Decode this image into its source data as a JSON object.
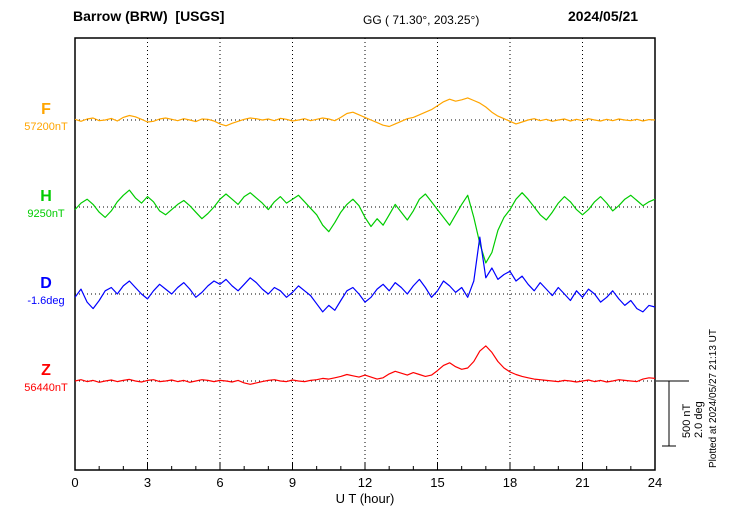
{
  "header": {
    "station": "Barrow (BRW)  [USGS]",
    "coords": "GG ( 71.30°, 203.25°)",
    "date": "2024/05/21"
  },
  "axis": {
    "x_label": "U T (hour)",
    "x_ticks": [
      0,
      3,
      6,
      9,
      12,
      15,
      18,
      21,
      24
    ]
  },
  "scale_bar": {
    "label_nT": "500 nT",
    "label_deg": "2.0 deg"
  },
  "plotted_note": "Plotted at 2024/05/27 21:13 UT",
  "chart_data": {
    "type": "line",
    "title": "Barrow (BRW) [USGS] magnetogram — 2024/05/21",
    "xlabel": "U T (hour)",
    "x_range": [
      0,
      24
    ],
    "x_step_hours": 0.25,
    "x_ticks": [
      0,
      3,
      6,
      9,
      12,
      15,
      18,
      21,
      24
    ],
    "grid": "dotted vertical every 3 h, dotted baseline per trace",
    "legend_position": "left margin, one label per trace",
    "scale_reference": {
      "nT_per_bar": 500,
      "deg_per_bar": 2.0
    },
    "series": [
      {
        "name": "F",
        "baseline_label": "57200nT",
        "unit": "nT",
        "color": "#FFA500",
        "values_offset_from_baseline": [
          5,
          -10,
          8,
          15,
          -5,
          0,
          12,
          -8,
          20,
          35,
          25,
          5,
          -15,
          -10,
          8,
          15,
          5,
          -5,
          10,
          0,
          -12,
          8,
          5,
          -8,
          -30,
          -45,
          -25,
          -10,
          5,
          15,
          10,
          0,
          8,
          -5,
          12,
          5,
          -8,
          0,
          10,
          -5,
          5,
          15,
          8,
          -5,
          20,
          50,
          60,
          40,
          20,
          0,
          -20,
          -40,
          -50,
          -30,
          -10,
          10,
          20,
          40,
          60,
          80,
          110,
          140,
          160,
          145,
          155,
          170,
          150,
          130,
          100,
          60,
          30,
          10,
          -10,
          -30,
          -15,
          0,
          10,
          -5,
          5,
          -10,
          0,
          8,
          -8,
          5,
          -5,
          10,
          0,
          -8,
          5,
          -5,
          8,
          0,
          -5,
          5,
          -8,
          3,
          0
        ]
      },
      {
        "name": "H",
        "baseline_label": "9250nT",
        "unit": "nT",
        "color": "#00CC00",
        "values_offset_from_baseline": [
          -20,
          30,
          60,
          20,
          -40,
          -80,
          -30,
          40,
          90,
          130,
          70,
          30,
          80,
          40,
          -30,
          -60,
          -20,
          20,
          50,
          10,
          -40,
          -90,
          -50,
          0,
          60,
          100,
          60,
          20,
          80,
          110,
          70,
          30,
          -20,
          40,
          80,
          30,
          60,
          90,
          40,
          -10,
          -60,
          -140,
          -190,
          -120,
          -40,
          20,
          60,
          10,
          -80,
          -150,
          -90,
          -140,
          -60,
          20,
          -40,
          -100,
          -30,
          60,
          100,
          40,
          -20,
          -80,
          -140,
          -60,
          20,
          90,
          -80,
          -280,
          -430,
          -350,
          -180,
          -80,
          -20,
          60,
          110,
          60,
          0,
          -60,
          -100,
          -40,
          30,
          80,
          40,
          -20,
          -60,
          -20,
          40,
          80,
          30,
          -30,
          10,
          60,
          90,
          50,
          10,
          40,
          60
        ]
      },
      {
        "name": "D",
        "baseline_label": "-1.6deg",
        "unit": "deg",
        "color": "#0000FF",
        "values_offset_from_baseline": [
          -0.1,
          0.15,
          -0.25,
          -0.45,
          -0.2,
          0.1,
          0.2,
          0,
          0.25,
          0.4,
          0.2,
          0,
          -0.15,
          0.1,
          0.3,
          0.15,
          0,
          0.2,
          0.35,
          0.15,
          -0.1,
          0.05,
          0.25,
          0.4,
          0.3,
          0.45,
          0.25,
          0.1,
          0.3,
          0.5,
          0.35,
          0.15,
          0,
          0.2,
          0.1,
          -0.1,
          0.05,
          0.25,
          0.1,
          -0.05,
          -0.3,
          -0.55,
          -0.35,
          -0.5,
          -0.2,
          0.1,
          0.2,
          0,
          -0.25,
          -0.1,
          0.15,
          0.3,
          0.1,
          0.35,
          0.2,
          0,
          0.25,
          0.45,
          0.2,
          -0.1,
          0.1,
          0.4,
          0.25,
          0.05,
          0.2,
          -0.1,
          0.4,
          1.75,
          0.5,
          0.8,
          0.45,
          0.6,
          0.7,
          0.4,
          0.55,
          0.3,
          0.1,
          0.35,
          0.15,
          -0.05,
          0.2,
          0,
          -0.2,
          0.1,
          -0.1,
          0.15,
          0,
          -0.25,
          -0.1,
          0.1,
          -0.15,
          -0.35,
          -0.2,
          -0.45,
          -0.55,
          -0.35,
          -0.4
        ]
      },
      {
        "name": "Z",
        "baseline_label": "56440nT",
        "unit": "nT",
        "color": "#FF0000",
        "values_offset_from_baseline": [
          0,
          10,
          -5,
          5,
          -10,
          0,
          8,
          -5,
          5,
          12,
          0,
          -8,
          5,
          10,
          -5,
          0,
          8,
          -5,
          5,
          -10,
          0,
          10,
          5,
          -5,
          5,
          0,
          -8,
          5,
          -15,
          -25,
          -15,
          -5,
          5,
          10,
          0,
          -5,
          8,
          0,
          -5,
          5,
          10,
          20,
          15,
          25,
          35,
          50,
          40,
          30,
          45,
          30,
          15,
          25,
          55,
          75,
          60,
          45,
          65,
          50,
          35,
          45,
          80,
          120,
          140,
          110,
          90,
          100,
          150,
          230,
          270,
          220,
          150,
          100,
          70,
          50,
          35,
          25,
          15,
          10,
          5,
          0,
          -5,
          5,
          0,
          -8,
          0,
          8,
          -5,
          5,
          -8,
          0,
          10,
          5,
          0,
          -5,
          15,
          25,
          20
        ]
      }
    ]
  }
}
